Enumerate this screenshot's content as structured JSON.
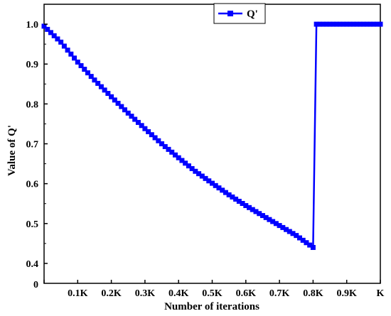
{
  "chart_data": {
    "type": "line",
    "xlabel": "Number of iterations",
    "ylabel": "Value of Q'",
    "x_ticks": [
      "0",
      "0.1K",
      "0.2K",
      "0.3K",
      "0.4K",
      "0.5K",
      "0.6K",
      "0.7K",
      "0.8K",
      "0.9K",
      "K"
    ],
    "y_ticks": [
      "0.4",
      "0.5",
      "0.6",
      "0.7",
      "0.8",
      "0.9",
      "1.0"
    ],
    "y_axis_origin_label": "0",
    "xlim": [
      0,
      1.0
    ],
    "ylim": [
      0.35,
      1.05
    ],
    "legend": {
      "position": "top-center",
      "entries": [
        "Q'"
      ]
    },
    "grid": false,
    "series": [
      {
        "name": "Q'",
        "color": "#0000ff",
        "marker": "square",
        "x_unit": "K iterations",
        "points": [
          [
            0.0,
            0.995
          ],
          [
            0.05,
            0.955
          ],
          [
            0.1,
            0.905
          ],
          [
            0.15,
            0.86
          ],
          [
            0.2,
            0.818
          ],
          [
            0.25,
            0.777
          ],
          [
            0.3,
            0.738
          ],
          [
            0.35,
            0.7
          ],
          [
            0.4,
            0.665
          ],
          [
            0.45,
            0.631
          ],
          [
            0.5,
            0.601
          ],
          [
            0.55,
            0.572
          ],
          [
            0.6,
            0.545
          ],
          [
            0.65,
            0.52
          ],
          [
            0.7,
            0.495
          ],
          [
            0.75,
            0.47
          ],
          [
            0.8,
            0.44
          ],
          [
            0.81,
            1.0
          ],
          [
            0.85,
            1.0
          ],
          [
            0.9,
            1.0
          ],
          [
            0.95,
            1.0
          ],
          [
            1.0,
            1.0
          ]
        ]
      }
    ]
  }
}
